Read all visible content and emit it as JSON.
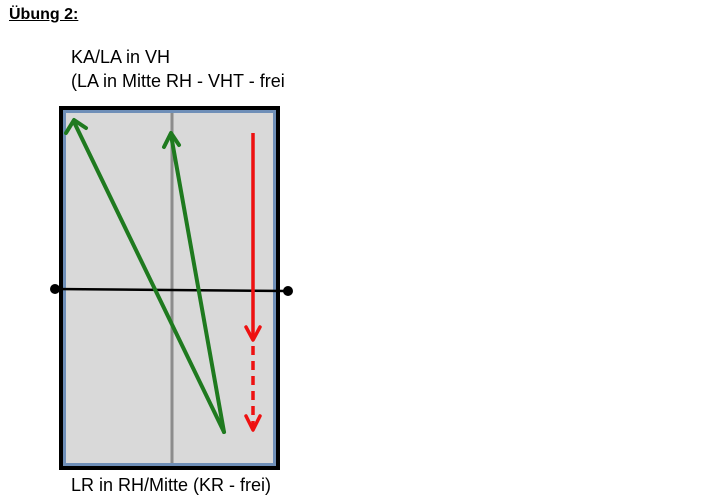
{
  "title": "Übung 2:",
  "top_caption": {
    "line1": "KA/LA in VH",
    "line2": "(LA in Mitte RH - VHT - frei"
  },
  "bottom_caption": "LR in RH/Mitte (KR - frei)",
  "colors": {
    "table_fill": "#d9d9d9",
    "table_edge": "#6f8fb8",
    "table_frame": "#000000",
    "center_line": "#8c8c8c",
    "net": "#000000",
    "green_arrow": "#1f7a1f",
    "red_arrow": "#ee1111"
  },
  "arrows": [
    {
      "name": "long-diagonal-green-arrow",
      "color": "green",
      "style": "solid"
    },
    {
      "name": "short-diagonal-green-arrow",
      "color": "green",
      "style": "solid"
    },
    {
      "name": "red-downward-arrow",
      "color": "red",
      "style": "solid-then-dashed"
    }
  ]
}
